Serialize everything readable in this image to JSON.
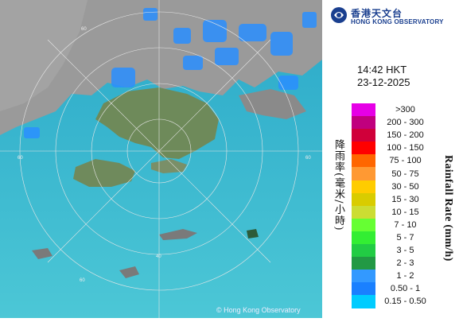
{
  "header": {
    "org_name_cn": "香港天文台",
    "org_name_en": "HONG KONG OBSERVATORY",
    "logo_icon": "hko-logo-icon"
  },
  "timestamp": {
    "time": "14:42 HKT",
    "date": "23-12-2025"
  },
  "legend": {
    "title_cn": "降雨率(毫米/小時)",
    "title_en": "Rainfall Rate (mm/h)",
    "items": [
      {
        "label": ">300",
        "color": "#e600e6"
      },
      {
        "label": "200 - 300",
        "color": "#c0007e"
      },
      {
        "label": "150 - 200",
        "color": "#d0003a"
      },
      {
        "label": "100 - 150",
        "color": "#ff0000"
      },
      {
        "label": "75 - 100",
        "color": "#ff6600"
      },
      {
        "label": "50 - 75",
        "color": "#ff9933"
      },
      {
        "label": "30 - 50",
        "color": "#ffcc00"
      },
      {
        "label": "15 - 30",
        "color": "#d9cc00"
      },
      {
        "label": "10 - 15",
        "color": "#ccdd33"
      },
      {
        "label": "7 - 10",
        "color": "#66ff33"
      },
      {
        "label": "5 - 7",
        "color": "#33ee33"
      },
      {
        "label": "3 - 5",
        "color": "#22cc44"
      },
      {
        "label": "2 - 3",
        "color": "#229944"
      },
      {
        "label": "1 - 2",
        "color": "#3399ff"
      },
      {
        "label": "0.50 - 1",
        "color": "#1a80ff"
      },
      {
        "label": "0.15 - 0.50",
        "color": "#00ccff"
      }
    ]
  },
  "map": {
    "copyright": "© Hong Kong Observatory",
    "ring_labels": [
      "60",
      "60",
      "40",
      "60",
      "60"
    ]
  }
}
